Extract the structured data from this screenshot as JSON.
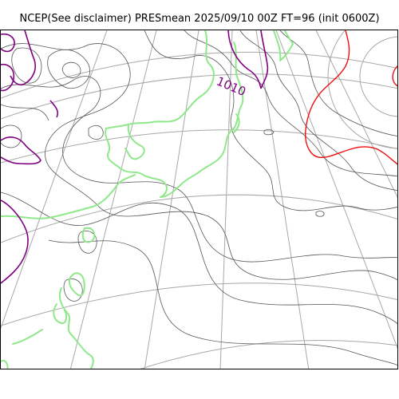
{
  "title": "NCEP(See disclaimer) PRESmean 2025/09/10 00Z FT=96 (init 0600Z)",
  "contour_labels": [
    "1010"
  ],
  "colors": {
    "isobar": "#555555",
    "coastline": "#8fe88a",
    "graticule": "#a8a8a8",
    "contour_1010": "#800080",
    "contour_high": "#ee1010",
    "frame": "#000000"
  }
}
